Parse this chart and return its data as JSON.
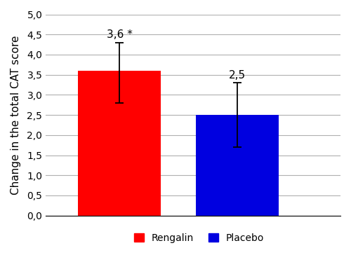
{
  "categories": [
    "Rengalin",
    "Placebo"
  ],
  "values": [
    3.6,
    2.5
  ],
  "error_upper": [
    0.7,
    0.8
  ],
  "error_lower": [
    0.8,
    0.8
  ],
  "bar_colors": [
    "#ff0000",
    "#0000e0"
  ],
  "bar_labels": [
    "3,6 *",
    "2,5"
  ],
  "ylabel": "Change in the total CAT score",
  "ylim": [
    0,
    5.0
  ],
  "yticks": [
    0.0,
    0.5,
    1.0,
    1.5,
    2.0,
    2.5,
    3.0,
    3.5,
    4.0,
    4.5,
    5.0
  ],
  "ytick_labels": [
    "0,0",
    "0,5",
    "1,0",
    "1,5",
    "2,0",
    "2,5",
    "3,0",
    "3,5",
    "4,0",
    "4,5",
    "5,0"
  ],
  "legend_labels": [
    "Rengalin",
    "Placebo"
  ],
  "legend_colors": [
    "#ff0000",
    "#0000e0"
  ],
  "bar_width": 0.28,
  "x_positions": [
    0.25,
    0.65
  ],
  "xlim": [
    0.0,
    1.0
  ],
  "background_color": "#ffffff",
  "grid_color": "#b0b0b0",
  "label_fontsize": 11,
  "ylabel_fontsize": 11,
  "tick_fontsize": 10,
  "legend_fontsize": 10,
  "capsize": 4,
  "elinewidth": 1.3
}
